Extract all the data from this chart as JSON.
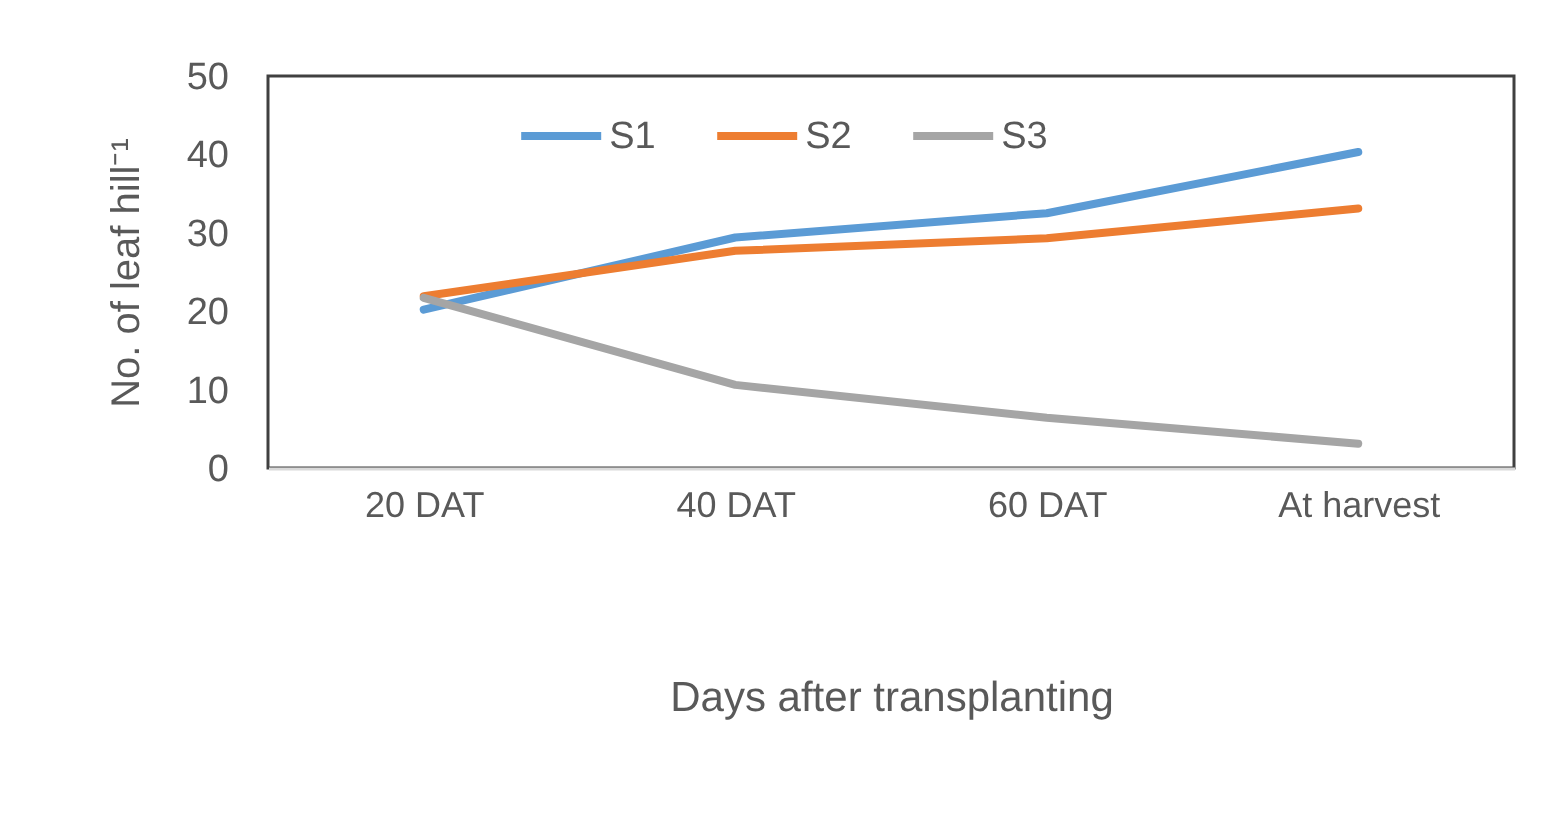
{
  "chart_data": {
    "type": "line",
    "xlabel": "Days after transplanting",
    "ylabel": "No. of leaf hill⁻¹",
    "categories": [
      "20 DAT",
      "40 DAT",
      "60 DAT",
      "At harvest"
    ],
    "ylim": [
      0,
      50
    ],
    "yticks": [
      0,
      10,
      20,
      30,
      40,
      50
    ],
    "legend": "top",
    "series": [
      {
        "name": "S1",
        "color": "#5b9bd5",
        "values": [
          20.2,
          29.4,
          32.5,
          40.3
        ]
      },
      {
        "name": "S2",
        "color": "#ed7d31",
        "values": [
          21.9,
          27.7,
          29.3,
          33.1
        ]
      },
      {
        "name": "S3",
        "color": "#a5a5a5",
        "values": [
          21.7,
          10.6,
          6.4,
          3.1
        ]
      }
    ]
  }
}
